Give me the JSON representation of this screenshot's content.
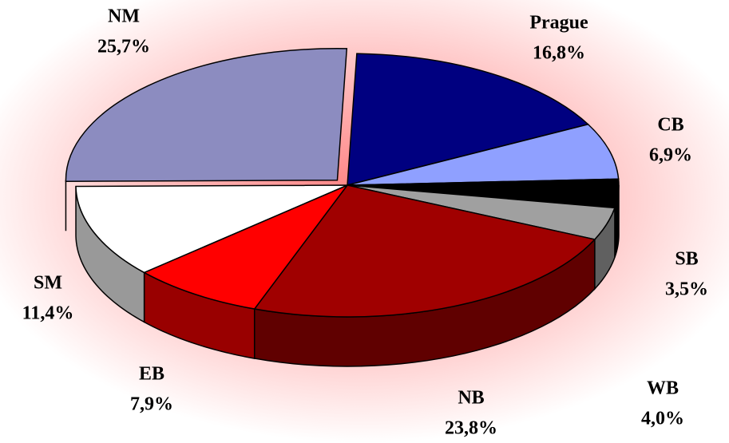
{
  "chart_data": {
    "type": "pie",
    "categories": [
      "Prague",
      "CB",
      "SB",
      "WB",
      "NB",
      "EB",
      "SM",
      "NM"
    ],
    "values": [
      16.8,
      6.9,
      3.5,
      4.0,
      23.8,
      7.9,
      11.4,
      25.7
    ],
    "value_labels": [
      "16,8%",
      "6,9%",
      "3,5%",
      "4,0%",
      "23,8%",
      "7,9%",
      "11,4%",
      "25,7%"
    ],
    "colors": [
      "#000080",
      "#8fa0ff",
      "#000000",
      "#a0a0a0",
      "#a00000",
      "#ff0000",
      "#ffffff",
      "#8c8cc0"
    ]
  }
}
